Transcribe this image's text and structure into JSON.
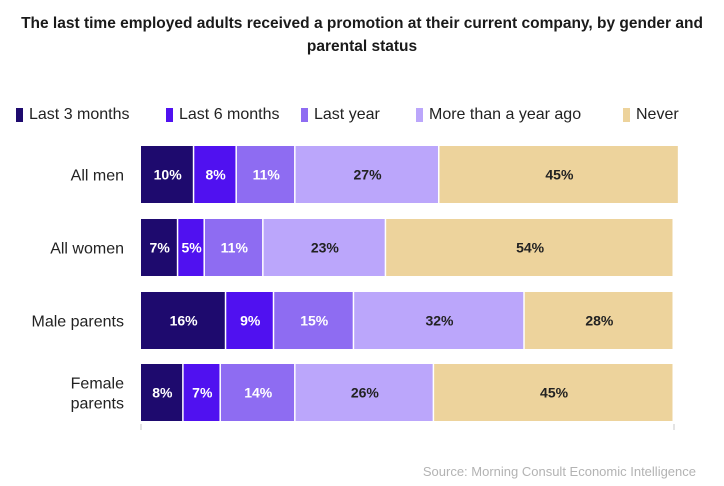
{
  "title": "The last time employed adults received a promotion at their current company, by gender and parental status",
  "source": "Source: Morning Consult Economic Intelligence",
  "chart_data": {
    "type": "bar",
    "orientation": "horizontal",
    "stacked": true,
    "categories": [
      "All men",
      "All women",
      "Male parents",
      "Female parents"
    ],
    "category_lines": [
      [
        "All men"
      ],
      [
        "All women"
      ],
      [
        "Male parents"
      ],
      [
        "Female",
        "parents"
      ]
    ],
    "series": [
      {
        "name": "Last 3 months",
        "color": "#1e0a6e",
        "values": [
          10,
          7,
          16,
          8
        ]
      },
      {
        "name": "Last 6 months",
        "color": "#5011f0",
        "values": [
          8,
          5,
          9,
          7
        ]
      },
      {
        "name": "Last year",
        "color": "#8e6cf2",
        "values": [
          11,
          11,
          15,
          14
        ]
      },
      {
        "name": "More than a year ago",
        "color": "#bba6fb",
        "values": [
          27,
          23,
          32,
          26
        ]
      },
      {
        "name": "Never",
        "color": "#edd39c",
        "values": [
          45,
          54,
          28,
          45
        ]
      }
    ],
    "value_suffix": "%",
    "legend_position": "top",
    "grid": false
  }
}
